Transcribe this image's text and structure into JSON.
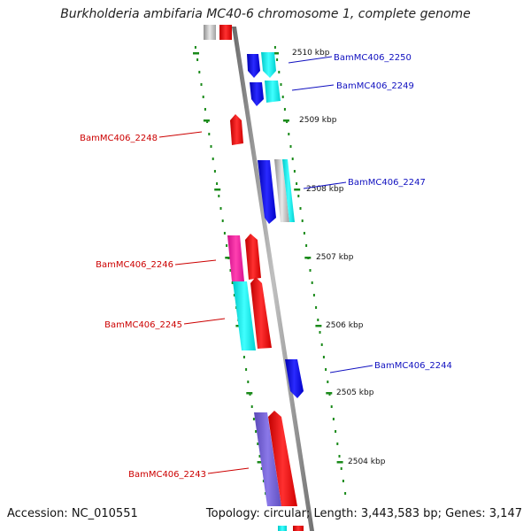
{
  "header": {
    "title": "Burkholderia ambifaria MC40-6 chromosome 1, complete genome"
  },
  "footer": {
    "accession": "Accession: NC_010551",
    "summary": "Topology: circular; Length: 3,443,583 bp; Genes: 3,147"
  },
  "colors": {
    "forward_label": "#1010c0",
    "reverse_label": "#cc0000",
    "tick": "#1a8a1a",
    "backbone": "#808080"
  },
  "kbp_labels": [
    "2510 kbp",
    "2509 kbp",
    "2508 kbp",
    "2507 kbp",
    "2506 kbp",
    "2505 kbp",
    "2504 kbp"
  ],
  "genes": [
    {
      "name": "BamMC406_2250",
      "strand": "+",
      "color": "#0000ff"
    },
    {
      "name": "BamMC406_2249",
      "strand": "+",
      "color": "#0000ff"
    },
    {
      "name": "BamMC406_2248",
      "strand": "-",
      "color": "#ff0000"
    },
    {
      "name": "BamMC406_2247",
      "strand": "+",
      "color": "#0000ff"
    },
    {
      "name": "BamMC406_2246",
      "strand": "-",
      "color": "#ff0000"
    },
    {
      "name": "BamMC406_2245",
      "strand": "-",
      "color": "#ff0000"
    },
    {
      "name": "BamMC406_2244",
      "strand": "+",
      "color": "#0000ff"
    },
    {
      "name": "BamMC406_2243",
      "strand": "-",
      "color": "#ff0000"
    }
  ]
}
